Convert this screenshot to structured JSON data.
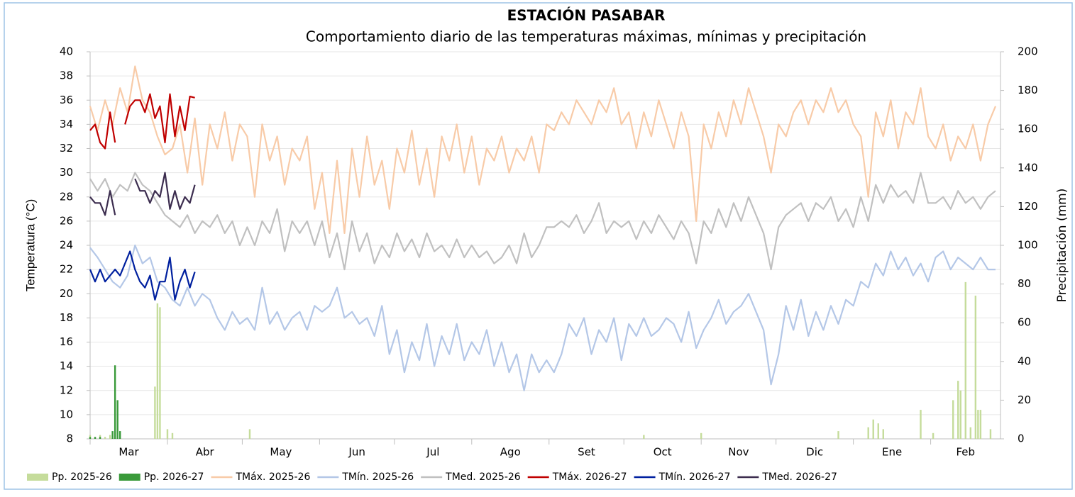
{
  "chart_data": {
    "type": "line",
    "title": "ESTACIÓN PASABAR",
    "subtitle": "Comportamiento diario de las temperaturas máximas, mínimas  y precipitación",
    "y_label": "Temperatura (°C)",
    "y2_label": "Precipitación (mm)",
    "xlim": [
      0,
      365
    ],
    "xticks": [
      {
        "value": 0,
        "label": "Mar"
      },
      {
        "value": 31,
        "label": "Abr"
      },
      {
        "value": 61,
        "label": "May"
      },
      {
        "value": 92,
        "label": "Jun"
      },
      {
        "value": 122,
        "label": "Jul"
      },
      {
        "value": 153,
        "label": "Ago"
      },
      {
        "value": 184,
        "label": "Set"
      },
      {
        "value": 214,
        "label": "Oct"
      },
      {
        "value": 245,
        "label": "Nov"
      },
      {
        "value": 275,
        "label": "Dic"
      },
      {
        "value": 306,
        "label": "Ene"
      },
      {
        "value": 337,
        "label": "Feb"
      }
    ],
    "ylim": [
      8,
      40
    ],
    "yticks": [
      8,
      10,
      12,
      14,
      16,
      18,
      20,
      22,
      24,
      26,
      28,
      30,
      32,
      34,
      36,
      38,
      40
    ],
    "y2lim": [
      0,
      200
    ],
    "y2ticks": [
      0,
      20,
      40,
      60,
      80,
      100,
      120,
      140,
      160,
      180,
      200
    ],
    "grid": true,
    "legend": "bottom",
    "series": [
      {
        "name": "Pp. 2025-26",
        "type": "bar",
        "axis": "y2",
        "color": "#c5dc9b",
        "x": [
          0,
          2,
          4,
          6,
          8,
          26,
          27,
          28,
          31,
          33,
          64,
          222,
          245,
          300,
          312,
          314,
          316,
          318,
          333,
          338,
          346,
          348,
          349,
          351,
          353,
          355,
          356,
          357,
          361
        ],
        "values": [
          2,
          1,
          2,
          1,
          2,
          27,
          70,
          68,
          5,
          3,
          5,
          2,
          3,
          4,
          6,
          10,
          8,
          5,
          15,
          3,
          20,
          30,
          25,
          81,
          6,
          74,
          15,
          15,
          5
        ]
      },
      {
        "name": "Pp. 2026-27",
        "type": "bar",
        "axis": "y2",
        "color": "#3a9a3a",
        "x": [
          0,
          2,
          4,
          9,
          10,
          11,
          12
        ],
        "values": [
          1,
          1,
          1,
          4,
          38,
          20,
          4
        ]
      },
      {
        "name": "TMáx. 2025-26",
        "color": "#f8cba8",
        "x": [
          0,
          3,
          6,
          9,
          12,
          15,
          18,
          21,
          24,
          27,
          30,
          33,
          36,
          39,
          42,
          45,
          48,
          51,
          54,
          57,
          60,
          63,
          66,
          69,
          72,
          75,
          78,
          81,
          84,
          87,
          90,
          93,
          96,
          99,
          102,
          105,
          108,
          111,
          114,
          117,
          120,
          123,
          126,
          129,
          132,
          135,
          138,
          141,
          144,
          147,
          150,
          153,
          156,
          159,
          162,
          165,
          168,
          171,
          174,
          177,
          180,
          183,
          186,
          189,
          192,
          195,
          198,
          201,
          204,
          207,
          210,
          213,
          216,
          219,
          222,
          225,
          228,
          231,
          234,
          237,
          240,
          243,
          246,
          249,
          252,
          255,
          258,
          261,
          264,
          267,
          270,
          273,
          276,
          279,
          282,
          285,
          288,
          291,
          294,
          297,
          300,
          303,
          306,
          309,
          312,
          315,
          318,
          321,
          324,
          327,
          330,
          333,
          336,
          339,
          342,
          345,
          348,
          351,
          354,
          357,
          360,
          363
        ],
        "values": [
          35.5,
          33.5,
          36,
          34,
          37,
          35,
          38.8,
          36,
          35,
          33,
          31.5,
          32,
          34,
          30,
          34.5,
          29,
          34,
          32,
          35,
          31,
          34,
          33,
          28,
          34,
          31,
          33,
          29,
          32,
          31,
          33,
          27,
          30,
          25,
          31,
          25,
          32,
          28,
          33,
          29,
          31,
          27,
          32,
          30,
          33.5,
          29,
          32,
          28,
          33,
          31,
          34,
          30,
          33,
          29,
          32,
          31,
          33,
          30,
          32,
          31,
          33,
          30,
          34,
          33.5,
          35,
          34,
          36,
          35,
          34,
          36,
          35,
          37,
          34,
          35,
          32,
          35,
          33,
          36,
          34,
          32,
          35,
          33,
          26,
          34,
          32,
          35,
          33,
          36,
          34,
          37,
          35,
          33,
          30,
          34,
          33,
          35,
          36,
          34,
          36,
          35,
          37,
          35,
          36,
          34,
          33,
          28,
          35,
          33,
          36,
          32,
          35,
          34,
          37,
          33,
          32,
          34,
          31,
          33,
          32,
          34,
          31,
          34,
          35.5
        ]
      },
      {
        "name": "TMín. 2025-26",
        "color": "#b4c7e7",
        "x": [
          0,
          3,
          6,
          9,
          12,
          15,
          18,
          21,
          24,
          27,
          30,
          33,
          36,
          39,
          42,
          45,
          48,
          51,
          54,
          57,
          60,
          63,
          66,
          69,
          72,
          75,
          78,
          81,
          84,
          87,
          90,
          93,
          96,
          99,
          102,
          105,
          108,
          111,
          114,
          117,
          120,
          123,
          126,
          129,
          132,
          135,
          138,
          141,
          144,
          147,
          150,
          153,
          156,
          159,
          162,
          165,
          168,
          171,
          174,
          177,
          180,
          183,
          186,
          189,
          192,
          195,
          198,
          201,
          204,
          207,
          210,
          213,
          216,
          219,
          222,
          225,
          228,
          231,
          234,
          237,
          240,
          243,
          246,
          249,
          252,
          255,
          258,
          261,
          264,
          267,
          270,
          273,
          276,
          279,
          282,
          285,
          288,
          291,
          294,
          297,
          300,
          303,
          306,
          309,
          312,
          315,
          318,
          321,
          324,
          327,
          330,
          333,
          336,
          339,
          342,
          345,
          348,
          351,
          354,
          357,
          360,
          363
        ],
        "values": [
          23.8,
          23,
          22,
          21,
          20.5,
          21.5,
          24,
          22.5,
          23,
          21,
          20.5,
          19.5,
          19,
          20.5,
          19,
          20,
          19.5,
          18,
          17,
          18.5,
          17.5,
          18,
          17,
          20.5,
          17.5,
          18.5,
          17,
          18,
          18.5,
          17,
          19,
          18.5,
          19,
          20.5,
          18,
          18.5,
          17.5,
          18,
          16.5,
          19,
          15,
          17,
          13.5,
          16,
          14.5,
          17.5,
          14,
          16.5,
          15,
          17.5,
          14.5,
          16,
          15,
          17,
          14,
          16,
          13.5,
          15,
          12,
          15,
          13.5,
          14.5,
          13.5,
          15,
          17.5,
          16.5,
          18,
          15,
          17,
          16,
          18,
          14.5,
          17.5,
          16.5,
          18,
          16.5,
          17,
          18,
          17.5,
          16,
          18.5,
          15.5,
          17,
          18,
          19.5,
          17.5,
          18.5,
          19,
          20,
          18.5,
          17,
          12.5,
          15,
          19,
          17,
          19.5,
          16.5,
          18.5,
          17,
          19,
          17.5,
          19.5,
          19,
          21,
          20.5,
          22.5,
          21.5,
          23.5,
          22,
          23,
          21.5,
          22.5,
          21,
          23,
          23.5,
          22,
          23,
          22.5,
          22,
          23,
          22,
          22
        ]
      },
      {
        "name": "TMed. 2025-26",
        "color": "#c0c0c0",
        "x": [
          0,
          3,
          6,
          9,
          12,
          15,
          18,
          21,
          24,
          27,
          30,
          33,
          36,
          39,
          42,
          45,
          48,
          51,
          54,
          57,
          60,
          63,
          66,
          69,
          72,
          75,
          78,
          81,
          84,
          87,
          90,
          93,
          96,
          99,
          102,
          105,
          108,
          111,
          114,
          117,
          120,
          123,
          126,
          129,
          132,
          135,
          138,
          141,
          144,
          147,
          150,
          153,
          156,
          159,
          162,
          165,
          168,
          171,
          174,
          177,
          180,
          183,
          186,
          189,
          192,
          195,
          198,
          201,
          204,
          207,
          210,
          213,
          216,
          219,
          222,
          225,
          228,
          231,
          234,
          237,
          240,
          243,
          246,
          249,
          252,
          255,
          258,
          261,
          264,
          267,
          270,
          273,
          276,
          279,
          282,
          285,
          288,
          291,
          294,
          297,
          300,
          303,
          306,
          309,
          312,
          315,
          318,
          321,
          324,
          327,
          330,
          333,
          336,
          339,
          342,
          345,
          348,
          351,
          354,
          357,
          360,
          363
        ],
        "values": [
          29.5,
          28.5,
          29.5,
          28,
          29,
          28.5,
          30,
          29,
          28.5,
          27.5,
          26.5,
          26,
          25.5,
          26.5,
          25,
          26,
          25.5,
          26.5,
          25,
          26,
          24,
          25.5,
          24,
          26,
          25,
          27,
          23.5,
          26,
          25,
          26,
          24,
          26,
          23,
          25,
          22,
          26,
          23.5,
          25,
          22.5,
          24,
          23,
          25,
          23.5,
          24.5,
          23,
          25,
          23.5,
          24,
          23,
          24.5,
          23,
          24,
          23,
          23.5,
          22.5,
          23,
          24,
          22.5,
          25,
          23,
          24,
          25.5,
          25.5,
          26,
          25.5,
          26.5,
          25,
          26,
          27.5,
          25,
          26,
          25.5,
          26,
          24.5,
          26,
          25,
          26.5,
          25.5,
          24.5,
          26,
          25,
          22.5,
          26,
          25,
          27,
          25.5,
          27.5,
          26,
          28,
          26.5,
          25,
          22,
          25.5,
          26.5,
          27,
          27.5,
          26,
          27.5,
          27,
          28,
          26,
          27,
          25.5,
          28,
          26,
          29,
          27.5,
          29,
          28,
          28.5,
          27.5,
          30,
          27.5,
          27.5,
          28,
          27,
          28.5,
          27.5,
          28,
          27,
          28,
          28.5
        ]
      },
      {
        "name": "TMáx. 2026-27",
        "color": "#c00000",
        "x": [
          0,
          2,
          4,
          6,
          8,
          10,
          12,
          14,
          16,
          18,
          20,
          22,
          24,
          26,
          28,
          30,
          32,
          34,
          36,
          38,
          40,
          42
        ],
        "values": [
          33.5,
          34,
          32.5,
          32,
          35,
          32.5,
          null,
          34,
          35.5,
          36,
          36,
          35,
          36.5,
          34.5,
          35.5,
          32.5,
          36.5,
          33,
          35.5,
          33.5,
          36.3,
          36.2
        ]
      },
      {
        "name": "TMín. 2026-27",
        "color": "#00209f",
        "x": [
          0,
          2,
          4,
          6,
          8,
          10,
          12,
          14,
          16,
          18,
          20,
          22,
          24,
          26,
          28,
          30,
          32,
          34,
          36,
          38,
          40,
          42
        ],
        "values": [
          22,
          21,
          22,
          21,
          21.5,
          22,
          21.5,
          22.5,
          23.5,
          22,
          21,
          20.5,
          21.5,
          19.5,
          21,
          21,
          23,
          19.5,
          21,
          22,
          20.5,
          21.8
        ]
      },
      {
        "name": "TMed. 2026-27",
        "color": "#3c2d4f",
        "x": [
          0,
          2,
          4,
          6,
          8,
          10,
          12,
          14,
          16,
          18,
          20,
          22,
          24,
          26,
          28,
          30,
          32,
          34,
          36,
          38,
          40,
          42
        ],
        "values": [
          28,
          27.5,
          27.5,
          26.5,
          28.5,
          26.5,
          null,
          null,
          null,
          29.5,
          28.5,
          28.5,
          27.5,
          28.5,
          28,
          30,
          27,
          28.5,
          27,
          28,
          27.5,
          29
        ]
      }
    ]
  }
}
